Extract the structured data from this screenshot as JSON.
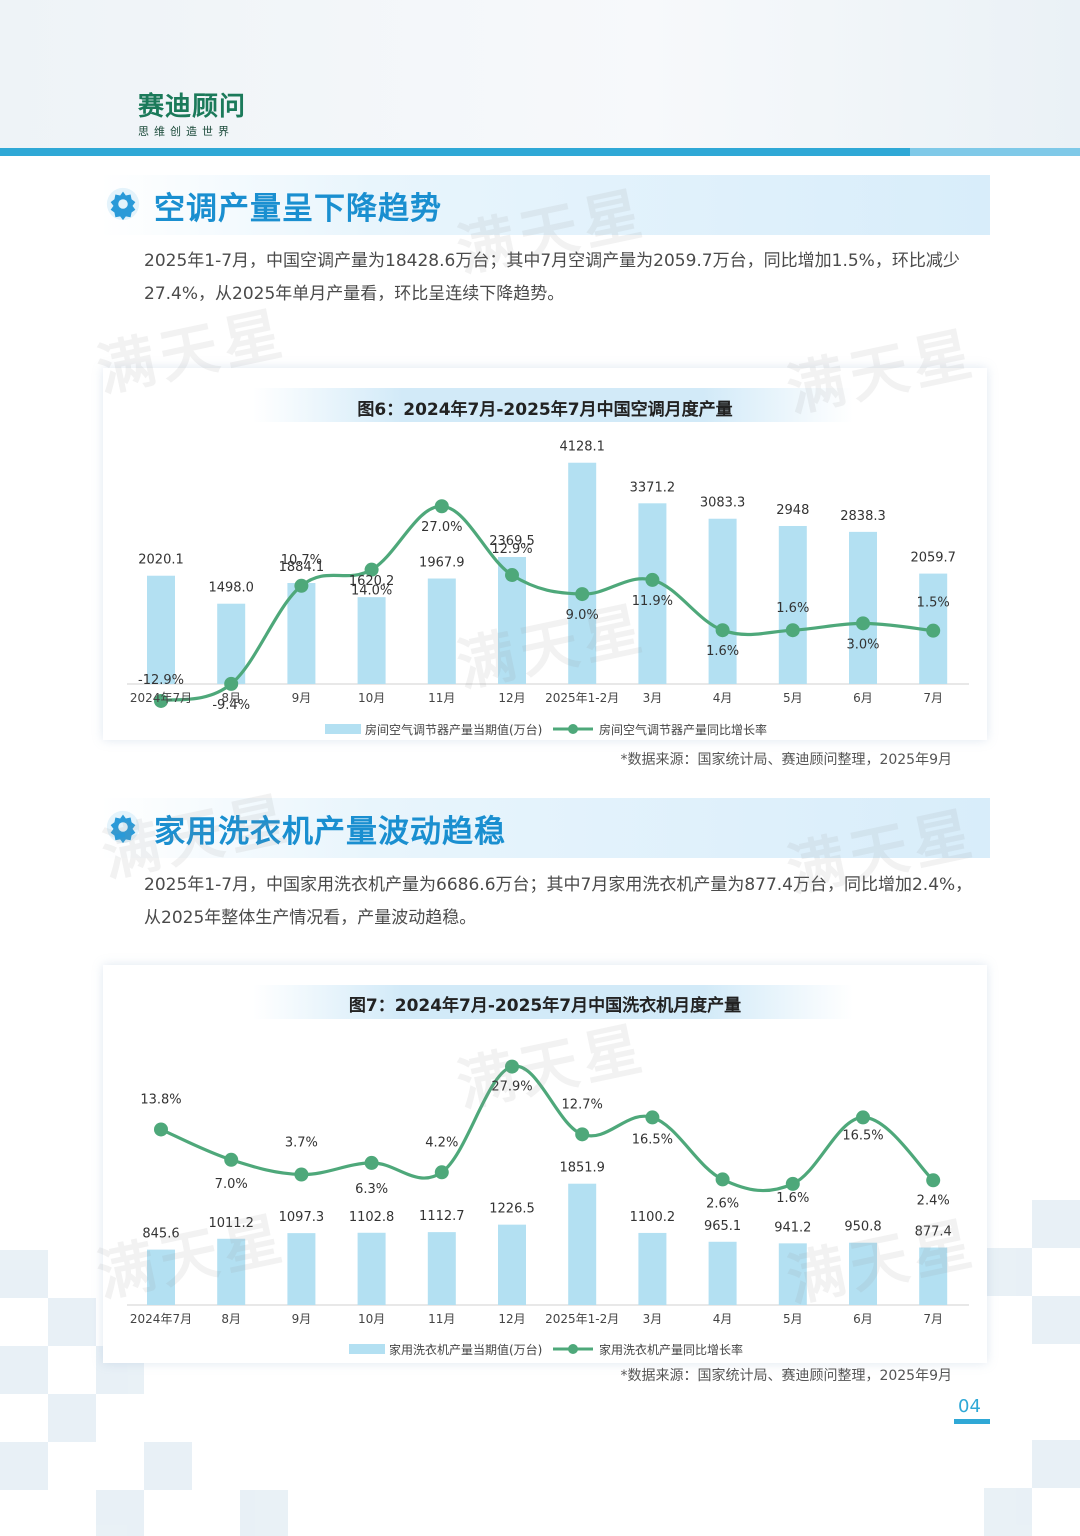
{
  "brand": {
    "name": "赛迪顾问",
    "slogan": "思维创造世界"
  },
  "watermark": "满天星",
  "page_number": "04",
  "section1": {
    "title": "空调产量呈下降趋势",
    "paragraph": "2025年1-7月，中国空调产量为18428.6万台；其中7月空调产量为2059.7万台，同比增加1.5%，环比减少27.4%，从2025年单月产量看，环比呈连续下降趋势。",
    "source": "*数据来源：国家统计局、赛迪顾问整理，2025年9月"
  },
  "section2": {
    "title": "家用洗衣机产量波动趋稳",
    "paragraph": "2025年1-7月，中国家用洗衣机产量为6686.6万台；其中7月家用洗衣机产量为877.4万台，同比增加2.4%，从2025年整体生产情况看，产量波动趋稳。",
    "source": "*数据来源：国家统计局、赛迪顾问整理，2025年9月"
  },
  "colors": {
    "bar": "#b3e0f2",
    "line": "#4ea87a",
    "accent": "#1a8fd0",
    "topbar": "#2fa8d6"
  },
  "chart_data": [
    {
      "type": "bar",
      "title": "图6：2024年7月-2025年7月中国空调月度产量",
      "categories": [
        "2024年7月",
        "8月",
        "9月",
        "10月",
        "11月",
        "12月",
        "2025年1-2月",
        "3月",
        "4月",
        "5月",
        "6月",
        "7月"
      ],
      "series": [
        {
          "name": "房间空气调节器产量当期值(万台)",
          "type": "bar",
          "values": [
            2020.1,
            1498.0,
            1884.1,
            1620.2,
            1967.9,
            2369.5,
            4128.1,
            3371.2,
            3083.3,
            2948,
            2838.3,
            2059.7
          ],
          "labels": [
            "2020.1",
            "1498.0",
            "1884.1",
            "1620.2",
            "1967.9",
            "2369.5",
            "4128.1",
            "3371.2",
            "3083.3",
            "2948",
            "2838.3",
            "2059.7"
          ]
        },
        {
          "name": "房间空气调节器产量同比增长率",
          "type": "line",
          "values": [
            -12.9,
            -9.4,
            10.7,
            14.0,
            27.0,
            12.9,
            9.0,
            11.9,
            1.6,
            1.6,
            3.0,
            1.5
          ],
          "labels": [
            "-12.9%",
            "-9.4%",
            "10.7%",
            "14.0%",
            "27.0%",
            "12.9%",
            "9.0%",
            "11.9%",
            "1.6%",
            "1.6%",
            "3.0%",
            "1.5%"
          ]
        }
      ],
      "legend_position": "bottom",
      "grid": false
    },
    {
      "type": "bar",
      "title": "图7：2024年7月-2025年7月中国洗衣机月度产量",
      "categories": [
        "2024年7月",
        "8月",
        "9月",
        "10月",
        "11月",
        "12月",
        "2025年1-2月",
        "3月",
        "4月",
        "5月",
        "6月",
        "7月"
      ],
      "series": [
        {
          "name": "家用洗衣机产量当期值(万台)",
          "type": "bar",
          "values": [
            845.6,
            1011.2,
            1097.3,
            1102.8,
            1112.7,
            1226.5,
            1851.9,
            1100.2,
            965.1,
            941.2,
            950.8,
            877.4
          ],
          "labels": [
            "845.6",
            "1011.2",
            "1097.3",
            "1102.8",
            "1112.7",
            "1226.5",
            "1851.9",
            "1100.2",
            "965.1",
            "941.2",
            "950.8",
            "877.4"
          ]
        },
        {
          "name": "家用洗衣机产量同比增长率",
          "type": "line",
          "values": [
            13.8,
            7.0,
            3.7,
            6.3,
            4.2,
            27.9,
            12.7,
            16.5,
            2.6,
            1.6,
            16.5,
            2.4
          ],
          "labels": [
            "13.8%",
            "7.0%",
            "3.7%",
            "6.3%",
            "4.2%",
            "27.9%",
            "12.7%",
            "16.5%",
            "2.6%",
            "1.6%",
            "16.5%",
            "2.4%"
          ]
        }
      ],
      "legend_position": "bottom",
      "grid": false
    }
  ]
}
